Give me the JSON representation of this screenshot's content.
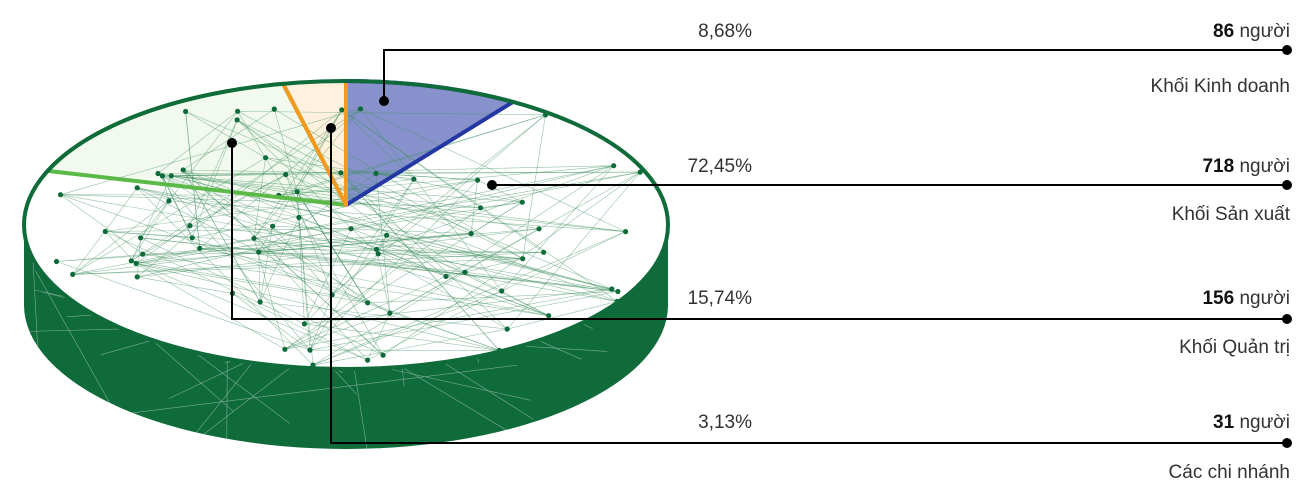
{
  "chart_data": {
    "type": "pie",
    "slices": [
      {
        "label": "Khối Kinh doanh",
        "percent": "8,68%",
        "value": 86,
        "unit": "người",
        "color": "#2438a3"
      },
      {
        "label": "Khối Sản xuất",
        "percent": "72,45%",
        "value": 718,
        "unit": "người",
        "color": "#0f6b3a"
      },
      {
        "label": "Khối Quản trị",
        "percent": "15,74%",
        "value": 156,
        "unit": "người",
        "color": "#5ab947"
      },
      {
        "label": "Các chi nhánh",
        "percent": "3,13%",
        "value": 31,
        "unit": "người",
        "color": "#f39a1e"
      }
    ]
  }
}
